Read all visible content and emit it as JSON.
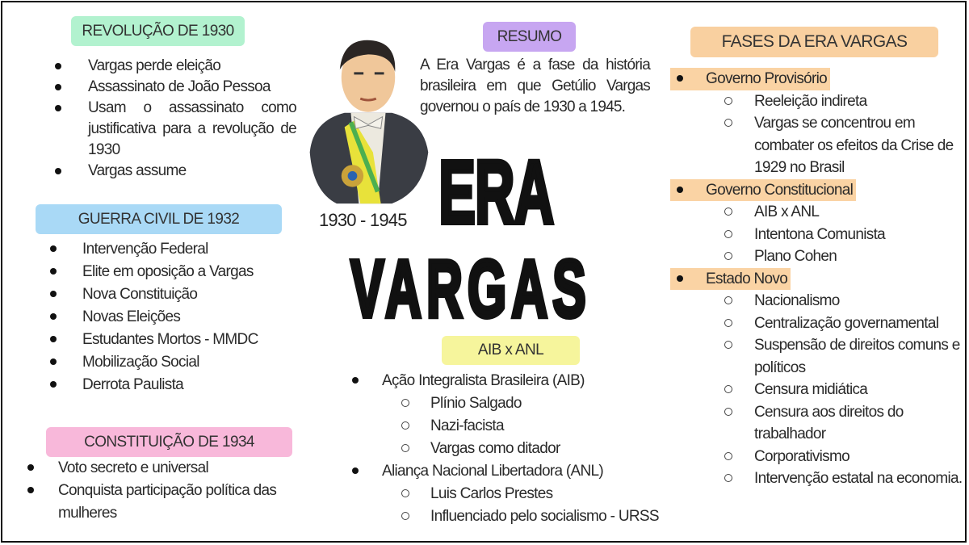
{
  "colors": {
    "green": "#b2f2cf",
    "blue": "#a9d9f6",
    "pink": "#f8b8da",
    "purple": "#c7a6f1",
    "yellow": "#f6f59c",
    "peach": "#f9d0a0"
  },
  "revolucao": {
    "title": "REVOLUÇÃO DE 1930",
    "items": [
      "Vargas perde eleição",
      "Assassinato de João Pessoa",
      "Usam o assassinato como justificativa para a revolução de 1930",
      "Vargas assume"
    ]
  },
  "guerra": {
    "title": "GUERRA CIVIL DE 1932",
    "items": [
      "Intervenção Federal",
      "Elite em oposição a Vargas",
      "Nova Constituição",
      "Novas Eleições",
      "Estudantes Mortos - MMDC",
      "Mobilização Social",
      "Derrota Paulista"
    ]
  },
  "constituicao": {
    "title": "CONSTITUIÇÃO DE 1934",
    "items": [
      "Voto secreto e universal",
      "Conquista participação política das mulheres"
    ]
  },
  "resumo": {
    "title": "RESUMO",
    "text": "A Era Vargas é a fase da história brasileira em que Getúlio Vargas governou o país de 1930 a 1945."
  },
  "portrait": {
    "years": "1930 - 1945"
  },
  "headline": {
    "line1": "ERA",
    "line2": "VARGAS"
  },
  "aib": {
    "title": "AIB x ANL",
    "groups": [
      {
        "label": "Ação Integralista Brasileira (AIB)",
        "items": [
          "Plínio Salgado",
          "Nazi-facista",
          "Vargas como ditador"
        ]
      },
      {
        "label": "Aliança Nacional Libertadora (ANL)",
        "items": [
          "Luis Carlos Prestes",
          "Influenciado pelo socialismo - URSS"
        ]
      }
    ]
  },
  "fases": {
    "title": "FASES DA ERA VARGAS",
    "groups": [
      {
        "label": "Governo Provisório",
        "items": [
          "Reeleição indireta",
          "Vargas se concentrou em combater os efeitos da Crise de 1929 no Brasil"
        ]
      },
      {
        "label": "Governo Constitucional",
        "items": [
          "AIB x ANL",
          "Intentona Comunista",
          "Plano Cohen"
        ]
      },
      {
        "label": "Estado Novo",
        "items": [
          "Nacionalismo",
          "Centralização governamental",
          "Suspensão de direitos comuns e políticos",
          "Censura midiática",
          "Censura aos direitos do trabalhador",
          "Corporativismo",
          "Intervenção estatal na economia."
        ]
      }
    ]
  }
}
